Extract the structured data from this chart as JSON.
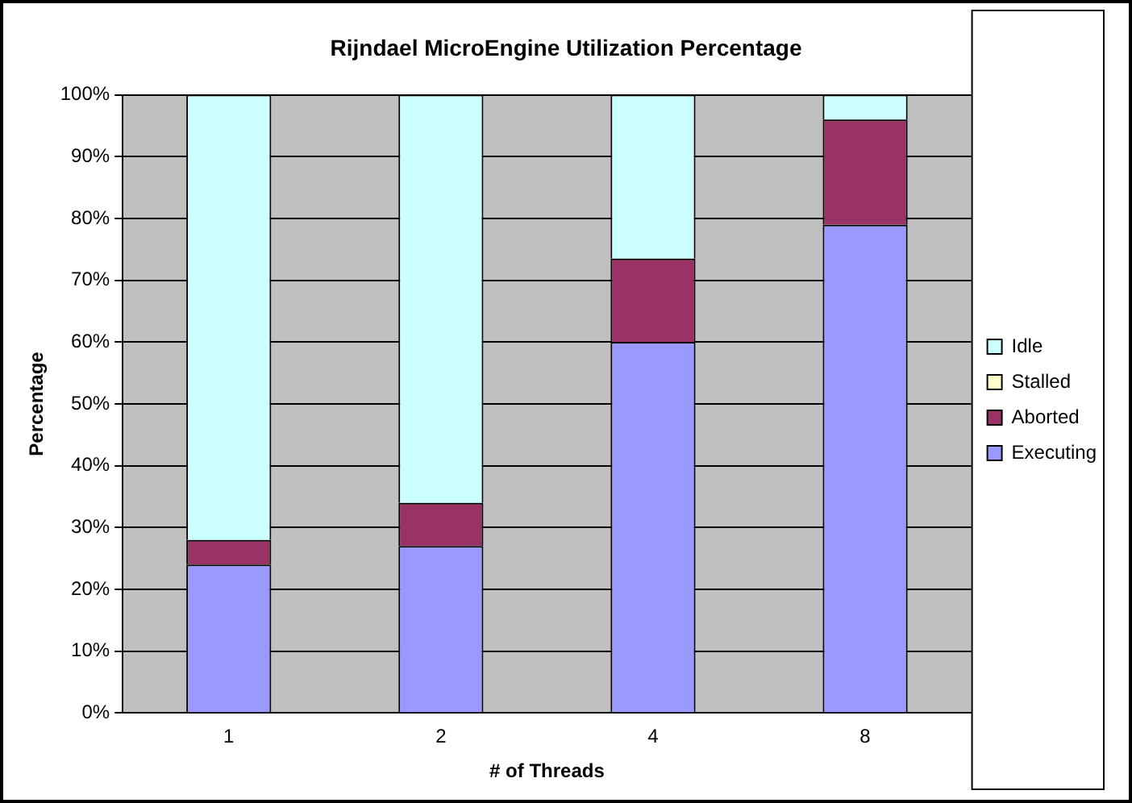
{
  "chart_data": {
    "type": "bar",
    "title": "Rijndael MicroEngine Utilization Percentage",
    "xlabel": "# of Threads",
    "ylabel": "Percentage",
    "categories": [
      "1",
      "2",
      "4",
      "8"
    ],
    "stacked": true,
    "series": [
      {
        "name": "Executing",
        "color": "#9999ff",
        "values": [
          24,
          27,
          60,
          79
        ]
      },
      {
        "name": "Aborted",
        "color": "#993366",
        "values": [
          4,
          7,
          13.5,
          17
        ]
      },
      {
        "name": "Stalled",
        "color": "#ffffcc",
        "values": [
          0,
          0,
          0,
          0
        ]
      },
      {
        "name": "Idle",
        "color": "#ccffff",
        "values": [
          72,
          66,
          26.5,
          4
        ]
      }
    ],
    "ylim": [
      0,
      100
    ],
    "yticks": [
      {
        "value": 0,
        "label": "0%"
      },
      {
        "value": 10,
        "label": "10%"
      },
      {
        "value": 20,
        "label": "20%"
      },
      {
        "value": 30,
        "label": "30%"
      },
      {
        "value": 40,
        "label": "40%"
      },
      {
        "value": 50,
        "label": "50%"
      },
      {
        "value": 60,
        "label": "60%"
      },
      {
        "value": 70,
        "label": "70%"
      },
      {
        "value": 80,
        "label": "80%"
      },
      {
        "value": 90,
        "label": "90%"
      },
      {
        "value": 100,
        "label": "100%"
      }
    ],
    "grid": "y",
    "legend": "right"
  }
}
